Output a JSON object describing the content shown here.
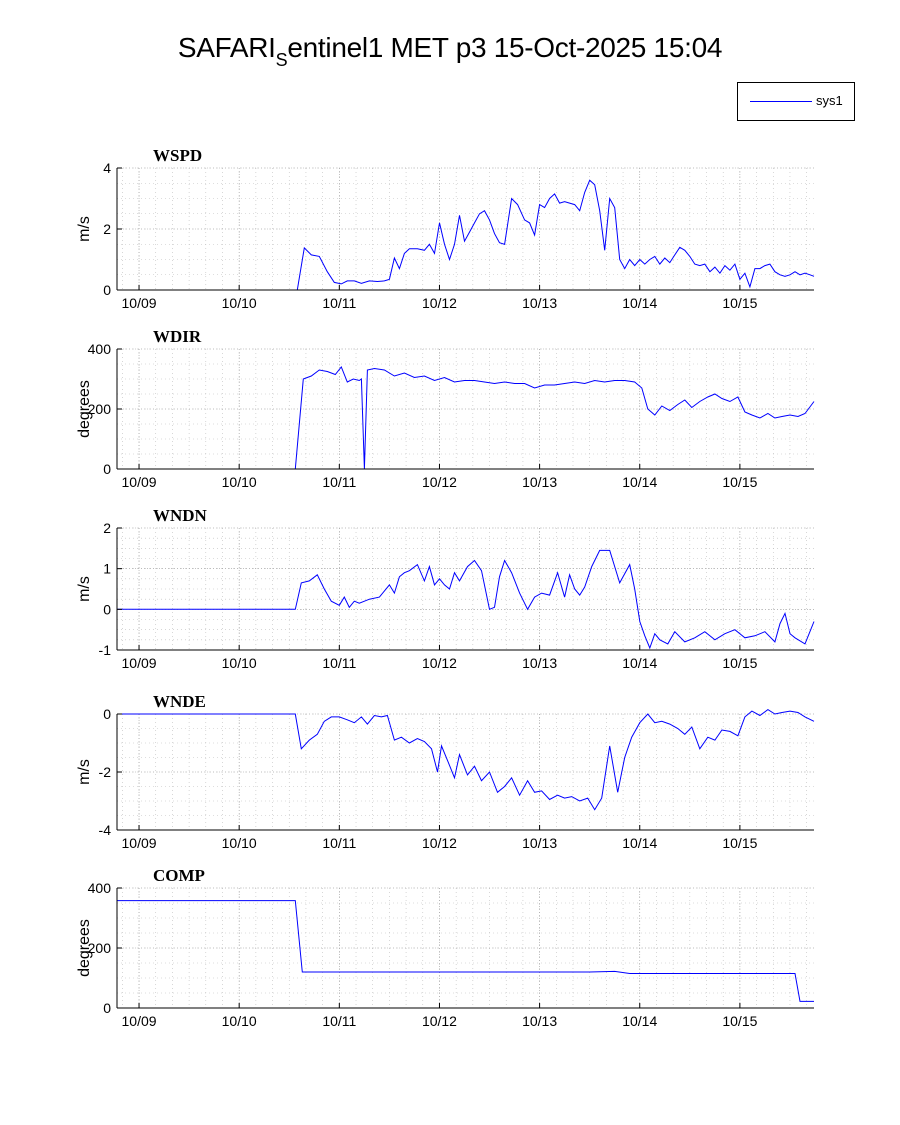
{
  "title": {
    "main": "SAFARI",
    "subscript": "S",
    "rest": "entinel1 MET p3 15-Oct-2025 15:04"
  },
  "legend": {
    "label": "sys1",
    "color": "#0000ff"
  },
  "chart_data": [
    {
      "type": "line",
      "title": "WSPD",
      "ylabel": "m/s",
      "ylim": [
        0,
        4
      ],
      "yticks": [
        0,
        2,
        4
      ],
      "xlim": [
        -0.22,
        6.74
      ],
      "xticks": [
        0,
        1,
        2,
        3,
        4,
        5,
        6
      ],
      "xtick_labels": [
        "10/09",
        "10/10",
        "10/11",
        "10/12",
        "10/13",
        "10/14",
        "10/15"
      ],
      "grid": true,
      "series": [
        {
          "name": "sys1",
          "x": [
            -0.22,
            1.58,
            1.65,
            1.72,
            1.8,
            1.88,
            1.95,
            2.02,
            2.08,
            2.15,
            2.22,
            2.3,
            2.38,
            2.45,
            2.5,
            2.55,
            2.6,
            2.65,
            2.7,
            2.78,
            2.85,
            2.9,
            2.95,
            3.0,
            3.05,
            3.1,
            3.15,
            3.2,
            3.25,
            3.3,
            3.35,
            3.4,
            3.45,
            3.5,
            3.55,
            3.6,
            3.65,
            3.72,
            3.78,
            3.85,
            3.9,
            3.95,
            4.0,
            4.05,
            4.1,
            4.15,
            4.2,
            4.25,
            4.3,
            4.35,
            4.4,
            4.45,
            4.5,
            4.55,
            4.6,
            4.65,
            4.7,
            4.75,
            4.8,
            4.85,
            4.9,
            4.95,
            5.0,
            5.05,
            5.1,
            5.15,
            5.2,
            5.25,
            5.3,
            5.35,
            5.4,
            5.45,
            5.5,
            5.55,
            5.6,
            5.65,
            5.7,
            5.75,
            5.8,
            5.85,
            5.9,
            5.95,
            6.0,
            6.05,
            6.1,
            6.15,
            6.2,
            6.25,
            6.3,
            6.35,
            6.4,
            6.45,
            6.5,
            6.55,
            6.6,
            6.65,
            6.7,
            6.74
          ],
          "y": [
            0,
            0,
            1.38,
            1.15,
            1.1,
            0.6,
            0.25,
            0.2,
            0.3,
            0.3,
            0.22,
            0.3,
            0.28,
            0.3,
            0.35,
            1.05,
            0.7,
            1.2,
            1.35,
            1.35,
            1.3,
            1.5,
            1.2,
            2.2,
            1.5,
            1.0,
            1.5,
            2.45,
            1.6,
            1.9,
            2.2,
            2.5,
            2.6,
            2.3,
            1.85,
            1.55,
            1.5,
            3.0,
            2.8,
            2.3,
            2.2,
            1.8,
            2.8,
            2.7,
            3.0,
            3.15,
            2.85,
            2.9,
            2.85,
            2.8,
            2.6,
            3.2,
            3.6,
            3.45,
            2.6,
            1.3,
            3.0,
            2.7,
            1.0,
            0.7,
            1.0,
            0.8,
            1.0,
            0.85,
            1.0,
            1.1,
            0.85,
            1.05,
            0.9,
            1.15,
            1.4,
            1.3,
            1.1,
            0.85,
            0.8,
            0.85,
            0.6,
            0.75,
            0.55,
            0.8,
            0.65,
            0.85,
            0.35,
            0.55,
            0.1,
            0.7,
            0.7,
            0.8,
            0.85,
            0.6,
            0.5,
            0.45,
            0.5,
            0.6,
            0.5,
            0.55,
            0.5,
            0.45
          ]
        }
      ]
    },
    {
      "type": "line",
      "title": "WDIR",
      "ylabel": "degrees",
      "ylim": [
        0,
        400
      ],
      "yticks": [
        0,
        200,
        400
      ],
      "xlim": [
        -0.22,
        6.74
      ],
      "xticks": [
        0,
        1,
        2,
        3,
        4,
        5,
        6
      ],
      "xtick_labels": [
        "10/09",
        "10/10",
        "10/11",
        "10/12",
        "10/13",
        "10/14",
        "10/15"
      ],
      "grid": true,
      "series": [
        {
          "name": "sys1",
          "x": [
            -0.22,
            1.56,
            1.64,
            1.72,
            1.8,
            1.88,
            1.96,
            2.02,
            2.08,
            2.14,
            2.2,
            2.22,
            2.25,
            2.28,
            2.35,
            2.45,
            2.55,
            2.65,
            2.75,
            2.85,
            2.95,
            3.05,
            3.15,
            3.25,
            3.35,
            3.45,
            3.55,
            3.65,
            3.75,
            3.85,
            3.95,
            4.05,
            4.15,
            4.25,
            4.35,
            4.45,
            4.55,
            4.65,
            4.75,
            4.85,
            4.95,
            5.02,
            5.08,
            5.15,
            5.22,
            5.3,
            5.38,
            5.45,
            5.52,
            5.6,
            5.68,
            5.75,
            5.82,
            5.9,
            5.98,
            6.05,
            6.12,
            6.2,
            6.28,
            6.35,
            6.42,
            6.5,
            6.58,
            6.65,
            6.74
          ],
          "y": [
            0,
            0,
            300,
            310,
            330,
            325,
            315,
            340,
            290,
            300,
            295,
            300,
            0,
            330,
            335,
            330,
            310,
            320,
            305,
            310,
            295,
            305,
            290,
            295,
            295,
            290,
            285,
            290,
            285,
            285,
            270,
            280,
            280,
            285,
            290,
            285,
            295,
            290,
            295,
            295,
            290,
            270,
            200,
            180,
            210,
            195,
            215,
            230,
            205,
            225,
            240,
            250,
            235,
            225,
            240,
            190,
            180,
            170,
            185,
            170,
            175,
            180,
            175,
            185,
            225
          ]
        }
      ]
    },
    {
      "type": "line",
      "title": "WNDN",
      "ylabel": "m/s",
      "ylim": [
        -1,
        2
      ],
      "yticks": [
        -1,
        0,
        1,
        2
      ],
      "xlim": [
        -0.22,
        6.74
      ],
      "xticks": [
        0,
        1,
        2,
        3,
        4,
        5,
        6
      ],
      "xtick_labels": [
        "10/09",
        "10/10",
        "10/11",
        "10/12",
        "10/13",
        "10/14",
        "10/15"
      ],
      "grid": true,
      "series": [
        {
          "name": "sys1",
          "x": [
            -0.22,
            1.56,
            1.62,
            1.7,
            1.78,
            1.85,
            1.92,
            2.0,
            2.05,
            2.1,
            2.15,
            2.2,
            2.3,
            2.4,
            2.5,
            2.55,
            2.6,
            2.65,
            2.7,
            2.78,
            2.85,
            2.9,
            2.95,
            3.0,
            3.05,
            3.1,
            3.15,
            3.2,
            3.28,
            3.35,
            3.42,
            3.5,
            3.55,
            3.6,
            3.65,
            3.72,
            3.8,
            3.88,
            3.95,
            4.02,
            4.1,
            4.18,
            4.25,
            4.3,
            4.35,
            4.4,
            4.45,
            4.52,
            4.6,
            4.7,
            4.8,
            4.9,
            4.95,
            5.0,
            5.05,
            5.1,
            5.15,
            5.2,
            5.28,
            5.35,
            5.45,
            5.55,
            5.65,
            5.75,
            5.85,
            5.95,
            6.05,
            6.15,
            6.25,
            6.35,
            6.4,
            6.45,
            6.5,
            6.55,
            6.65,
            6.74
          ],
          "y": [
            0,
            0,
            0.65,
            0.7,
            0.85,
            0.5,
            0.2,
            0.1,
            0.3,
            0.05,
            0.2,
            0.15,
            0.25,
            0.3,
            0.6,
            0.4,
            0.8,
            0.9,
            0.95,
            1.1,
            0.7,
            1.05,
            0.6,
            0.75,
            0.6,
            0.5,
            0.9,
            0.7,
            1.05,
            1.2,
            0.95,
            0.0,
            0.05,
            0.8,
            1.2,
            0.9,
            0.4,
            0.0,
            0.3,
            0.4,
            0.35,
            0.9,
            0.3,
            0.85,
            0.5,
            0.35,
            0.55,
            1.05,
            1.45,
            1.45,
            0.65,
            1.1,
            0.5,
            -0.3,
            -0.65,
            -0.95,
            -0.6,
            -0.75,
            -0.85,
            -0.55,
            -0.8,
            -0.7,
            -0.55,
            -0.75,
            -0.6,
            -0.5,
            -0.7,
            -0.65,
            -0.55,
            -0.8,
            -0.35,
            -0.1,
            -0.6,
            -0.7,
            -0.85,
            -0.3
          ]
        }
      ]
    },
    {
      "type": "line",
      "title": "WNDE",
      "ylabel": "m/s",
      "ylim": [
        -4,
        0
      ],
      "yticks": [
        -4,
        -2,
        0
      ],
      "xlim": [
        -0.22,
        6.74
      ],
      "xticks": [
        0,
        1,
        2,
        3,
        4,
        5,
        6
      ],
      "xtick_labels": [
        "10/09",
        "10/10",
        "10/11",
        "10/12",
        "10/13",
        "10/14",
        "10/15"
      ],
      "grid": true,
      "series": [
        {
          "name": "sys1",
          "x": [
            -0.22,
            1.56,
            1.62,
            1.7,
            1.78,
            1.85,
            1.92,
            2.0,
            2.08,
            2.15,
            2.22,
            2.28,
            2.35,
            2.42,
            2.48,
            2.55,
            2.62,
            2.7,
            2.78,
            2.85,
            2.92,
            2.98,
            3.02,
            3.08,
            3.15,
            3.2,
            3.28,
            3.35,
            3.42,
            3.5,
            3.58,
            3.65,
            3.72,
            3.8,
            3.88,
            3.95,
            4.02,
            4.1,
            4.18,
            4.25,
            4.32,
            4.4,
            4.48,
            4.55,
            4.62,
            4.7,
            4.78,
            4.85,
            4.92,
            5.0,
            5.08,
            5.15,
            5.22,
            5.3,
            5.38,
            5.45,
            5.52,
            5.6,
            5.68,
            5.75,
            5.82,
            5.9,
            5.98,
            6.05,
            6.12,
            6.2,
            6.28,
            6.35,
            6.42,
            6.5,
            6.58,
            6.65,
            6.74
          ],
          "y": [
            0,
            0,
            -1.2,
            -0.9,
            -0.7,
            -0.25,
            -0.1,
            -0.1,
            -0.2,
            -0.3,
            -0.1,
            -0.35,
            -0.05,
            -0.1,
            -0.05,
            -0.9,
            -0.8,
            -1.0,
            -0.85,
            -0.95,
            -1.2,
            -2.0,
            -1.1,
            -1.6,
            -2.2,
            -1.4,
            -2.1,
            -1.8,
            -2.3,
            -2.0,
            -2.7,
            -2.5,
            -2.2,
            -2.8,
            -2.3,
            -2.7,
            -2.65,
            -2.95,
            -2.8,
            -2.9,
            -2.85,
            -3.0,
            -2.9,
            -3.3,
            -2.9,
            -1.1,
            -2.7,
            -1.5,
            -0.8,
            -0.3,
            0.0,
            -0.3,
            -0.25,
            -0.35,
            -0.5,
            -0.7,
            -0.45,
            -1.2,
            -0.8,
            -0.9,
            -0.55,
            -0.6,
            -0.75,
            -0.1,
            0.1,
            -0.05,
            0.15,
            0.0,
            0.05,
            0.1,
            0.05,
            -0.1,
            -0.25
          ]
        }
      ]
    },
    {
      "type": "line",
      "title": "COMP",
      "ylabel": "degrees",
      "ylim": [
        0,
        400
      ],
      "yticks": [
        0,
        200,
        400
      ],
      "xlim": [
        -0.22,
        6.74
      ],
      "xticks": [
        0,
        1,
        2,
        3,
        4,
        5,
        6
      ],
      "xtick_labels": [
        "10/09",
        "10/10",
        "10/11",
        "10/12",
        "10/13",
        "10/14",
        "10/15"
      ],
      "grid": true,
      "series": [
        {
          "name": "sys1",
          "x": [
            -0.22,
            1.56,
            1.63,
            2.0,
            3.0,
            4.0,
            4.5,
            4.75,
            4.9,
            5.5,
            6.0,
            6.55,
            6.6,
            6.74
          ],
          "y": [
            358,
            358,
            120,
            120,
            120,
            120,
            120,
            122,
            115,
            115,
            115,
            115,
            22,
            22
          ]
        }
      ]
    }
  ]
}
